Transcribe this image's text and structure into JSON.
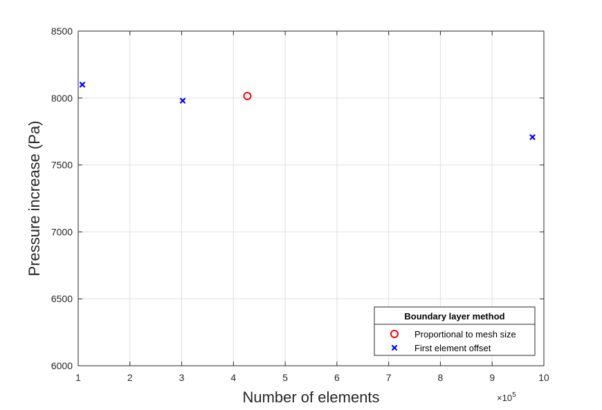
{
  "chart_data": {
    "type": "scatter",
    "xlabel": "Number of elements",
    "ylabel": "Pressure increase (Pa)",
    "x_multiplier": "×10",
    "x_multiplier_exponent": "5",
    "xlim": [
      1,
      10
    ],
    "ylim": [
      6000,
      8500
    ],
    "xticks": [
      1,
      2,
      3,
      4,
      5,
      6,
      7,
      8,
      9,
      10
    ],
    "yticks": [
      6000,
      6500,
      7000,
      7500,
      8000,
      8500
    ],
    "x_tick_labels": [
      "1",
      "2",
      "3",
      "4",
      "5",
      "6",
      "7",
      "8",
      "9",
      "10"
    ],
    "y_tick_labels": [
      "6000",
      "6500",
      "7000",
      "7500",
      "8000",
      "8500"
    ],
    "grid": true,
    "legend_placement": "bottom-right",
    "legend_title": "Boundary layer method",
    "series": [
      {
        "name": "Proportional to mesh size",
        "marker": "circle",
        "color": "#ff0000",
        "points": [
          {
            "x": 4.27,
            "y": 8015
          }
        ]
      },
      {
        "name": "First element offset",
        "marker": "x",
        "color": "#0000ff",
        "points": [
          {
            "x": 1.08,
            "y": 8100
          },
          {
            "x": 3.02,
            "y": 7980
          },
          {
            "x": 9.78,
            "y": 7708
          }
        ]
      }
    ]
  }
}
